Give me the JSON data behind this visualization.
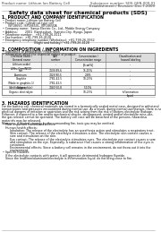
{
  "background_color": "#ffffff",
  "header_left": "Product name: Lithium Ion Battery Cell",
  "header_right_line1": "Substance number: SDS-GEN-009-01",
  "header_right_line2": "Establishment / Revision: Dec.7.2009",
  "title": "Safety data sheet for chemical products (SDS)",
  "section1_title": "1. PRODUCT AND COMPANY IDENTIFICATION",
  "section1_lines": [
    " • Product name: Lithium Ion Battery Cell",
    " • Product code: Cylindrical-type cell",
    "       ISF18650, ISF18650L, ISF18650A",
    " • Company name:  Sanyo Electric Co., Ltd., Mobile Energy Company",
    " • Address:        2001  Kamitsukuri,  Sumoto-City, Hyogo, Japan",
    " • Telephone number:   +81-799-26-4111",
    " • Fax number:  +81-799-26-4128",
    " • Emergency telephone number (Weekdays): +81-799-26-3962",
    "                                    (Night and holiday): +81-799-26-4128"
  ],
  "section2_title": "2. COMPOSITION / INFORMATION ON INGREDIENTS",
  "section2_sub": " • Substance or preparation: Preparation",
  "section2_sub2": " • Information about the chemical nature of product:",
  "table_headers": [
    "Chemical name /\nGeneral name",
    "CAS\nnumber",
    "Concentration /\nConcentration range\n[%:wt%]",
    "Classification and\nhazard labeling"
  ],
  "table_rows": [
    [
      "Lithium oxide/\nLiMn₂ Com(NCO)",
      "-",
      "-",
      "-"
    ],
    [
      "Iron",
      "7439-89-6",
      "15-25%",
      "-"
    ],
    [
      "Aluminum",
      "7429-90-5",
      "2-8%",
      "-"
    ],
    [
      "Graphite\n(Made in graphite-1)\n(Artificial graphite)",
      "7782-42-5\n7782-42-5",
      "10-25%",
      "-"
    ],
    [
      "Copper",
      "7440-50-8",
      "5-10%",
      "-"
    ],
    [
      "Organic electrolyte",
      "-",
      "10-25%",
      "Inflammation\nliquid"
    ]
  ],
  "section3_title": "3. HAZARDS IDENTIFICATION",
  "section3_para": [
    "For the battery cell, chemical materials are stored in a hermetically sealed metal case, designed to withstand",
    "temperatures and pressures encountered during normal use. As a result, during normal use/storage, there is no",
    "physical dangers of irritation or aspiration and the risk arising from the risk of battery electrolyte leakage.",
    "However, if exposed to a fire and/or mechanical shocks, decomposed, vented and/or electrolyte miss-use,",
    "the gas release cannot be operated. The battery cell case will be breached of the persons, hazardous",
    "materials may be released.",
    "Moreover, if heated strongly by the surrounding fire, toxic gas may be emitted."
  ],
  "section3_bullet1": " • Most important hazard and effects:",
  "section3_health": "    Human health effects:",
  "section3_health_lines": [
    "         Inhalation: The release of the electrolyte has an anesthesia action and stimulates a respiratory tract.",
    "         Skin contact: The release of the electrolyte stimulates a skin. The electrolyte skin contact causes a",
    "         sore and stimulation on the skin.",
    "         Eye contact: The release of the electrolyte stimulates eyes. The electrolyte eye contact causes a sore",
    "         and stimulation on the eye. Especially, a substance that causes a strong inflammation of the eyes is",
    "         contained.",
    "         Environmental effects: Since a battery cell remains in the environment, do not throw out it into the",
    "         environment."
  ],
  "section3_bullet2": " • Specific hazards:",
  "section3_specific": [
    "    If the electrolyte contacts with water, it will generate detrimental hydrogen fluoride.",
    "    Since the lead/iron/aluminum/electrolyte is inflammation liquid, do not bring close to fire."
  ]
}
